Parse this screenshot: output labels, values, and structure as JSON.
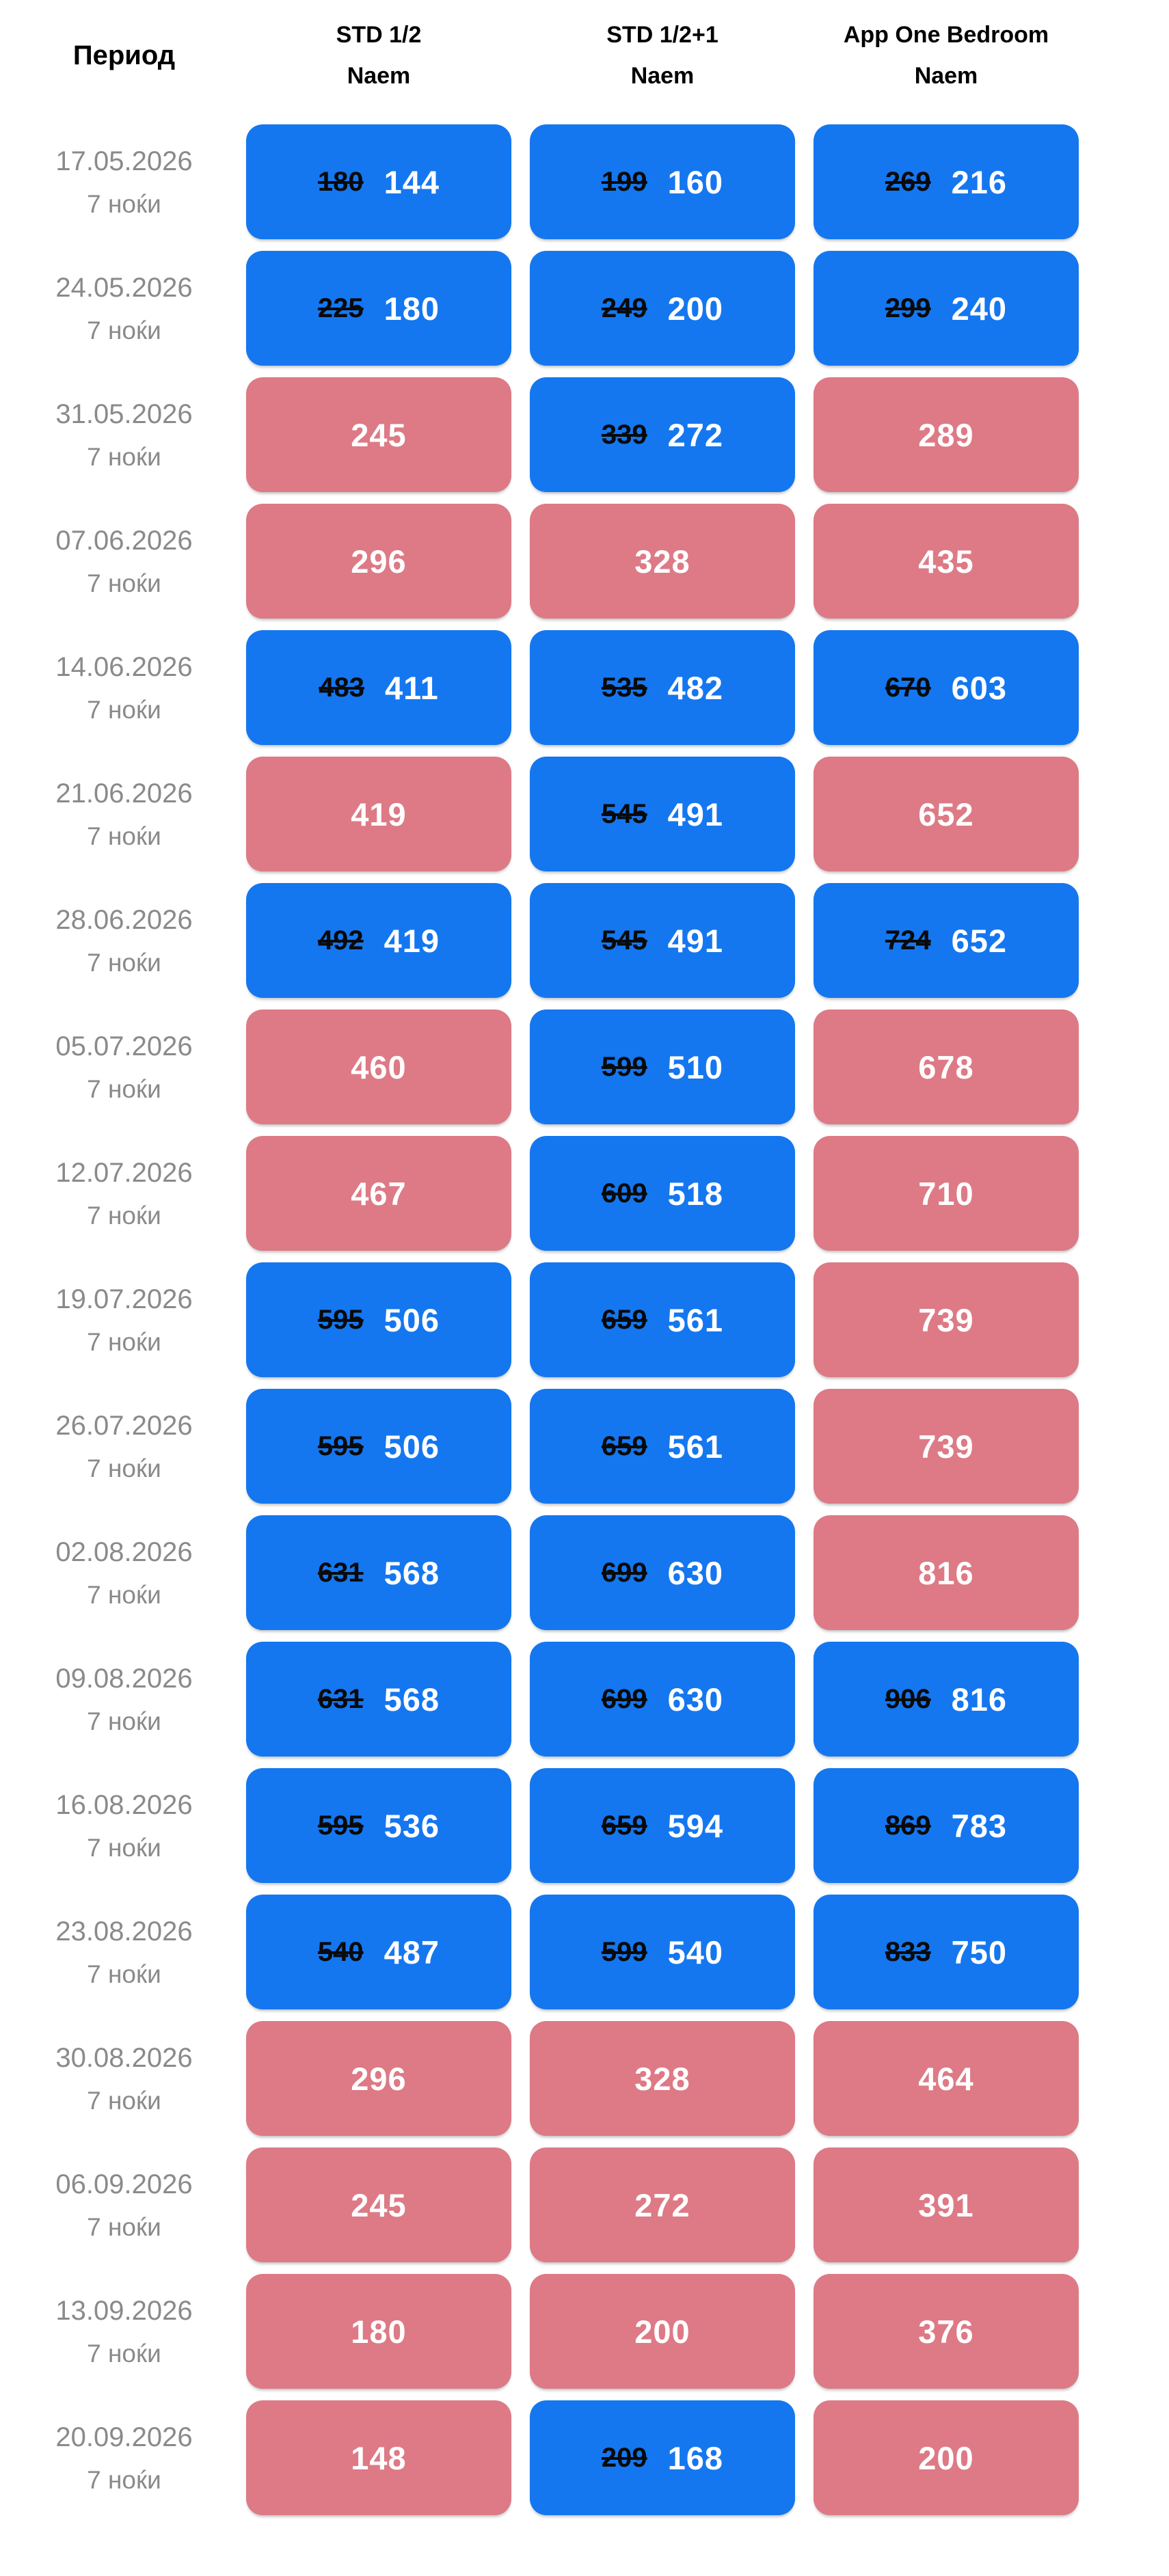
{
  "colors": {
    "deal_blue": "#1477f0",
    "standard_pink": "#dd7a86",
    "date_text": "#8a8a8a",
    "header_text": "#000000",
    "old_price_text": "#0a0a0a",
    "price_text": "#ffffff"
  },
  "header": {
    "period_label": "Период",
    "columns": [
      {
        "title": "STD 1/2",
        "subtitle": "Naem"
      },
      {
        "title": "STD 1/2+1",
        "subtitle": "Naem"
      },
      {
        "title": "App One Bedroom",
        "subtitle": "Naem"
      }
    ]
  },
  "rows": [
    {
      "period": "17.05.2026",
      "nights": "7 ноќи",
      "prices": [
        {
          "old": "180",
          "current": "144"
        },
        {
          "old": "199",
          "current": "160"
        },
        {
          "old": "269",
          "current": "216"
        }
      ]
    },
    {
      "period": "24.05.2026",
      "nights": "7 ноќи",
      "prices": [
        {
          "old": "225",
          "current": "180"
        },
        {
          "old": "249",
          "current": "200"
        },
        {
          "old": "299",
          "current": "240"
        }
      ]
    },
    {
      "period": "31.05.2026",
      "nights": "7 ноќи",
      "prices": [
        {
          "current": "245"
        },
        {
          "old": "339",
          "current": "272"
        },
        {
          "current": "289"
        }
      ]
    },
    {
      "period": "07.06.2026",
      "nights": "7 ноќи",
      "prices": [
        {
          "current": "296"
        },
        {
          "current": "328"
        },
        {
          "current": "435"
        }
      ]
    },
    {
      "period": "14.06.2026",
      "nights": "7 ноќи",
      "prices": [
        {
          "old": "483",
          "current": "411"
        },
        {
          "old": "535",
          "current": "482"
        },
        {
          "old": "670",
          "current": "603"
        }
      ]
    },
    {
      "period": "21.06.2026",
      "nights": "7 ноќи",
      "prices": [
        {
          "current": "419"
        },
        {
          "old": "545",
          "current": "491"
        },
        {
          "current": "652"
        }
      ]
    },
    {
      "period": "28.06.2026",
      "nights": "7 ноќи",
      "prices": [
        {
          "old": "492",
          "current": "419"
        },
        {
          "old": "545",
          "current": "491"
        },
        {
          "old": "724",
          "current": "652"
        }
      ]
    },
    {
      "period": "05.07.2026",
      "nights": "7 ноќи",
      "prices": [
        {
          "current": "460"
        },
        {
          "old": "599",
          "current": "510"
        },
        {
          "current": "678"
        }
      ]
    },
    {
      "period": "12.07.2026",
      "nights": "7 ноќи",
      "prices": [
        {
          "current": "467"
        },
        {
          "old": "609",
          "current": "518"
        },
        {
          "current": "710"
        }
      ]
    },
    {
      "period": "19.07.2026",
      "nights": "7 ноќи",
      "prices": [
        {
          "old": "595",
          "current": "506"
        },
        {
          "old": "659",
          "current": "561"
        },
        {
          "current": "739"
        }
      ]
    },
    {
      "period": "26.07.2026",
      "nights": "7 ноќи",
      "prices": [
        {
          "old": "595",
          "current": "506"
        },
        {
          "old": "659",
          "current": "561"
        },
        {
          "current": "739"
        }
      ]
    },
    {
      "period": "02.08.2026",
      "nights": "7 ноќи",
      "prices": [
        {
          "old": "631",
          "current": "568"
        },
        {
          "old": "699",
          "current": "630"
        },
        {
          "current": "816"
        }
      ]
    },
    {
      "period": "09.08.2026",
      "nights": "7 ноќи",
      "prices": [
        {
          "old": "631",
          "current": "568"
        },
        {
          "old": "699",
          "current": "630"
        },
        {
          "old": "906",
          "current": "816"
        }
      ]
    },
    {
      "period": "16.08.2026",
      "nights": "7 ноќи",
      "prices": [
        {
          "old": "595",
          "current": "536"
        },
        {
          "old": "659",
          "current": "594"
        },
        {
          "old": "869",
          "current": "783"
        }
      ]
    },
    {
      "period": "23.08.2026",
      "nights": "7 ноќи",
      "prices": [
        {
          "old": "540",
          "current": "487"
        },
        {
          "old": "599",
          "current": "540"
        },
        {
          "old": "833",
          "current": "750"
        }
      ]
    },
    {
      "period": "30.08.2026",
      "nights": "7 ноќи",
      "prices": [
        {
          "current": "296"
        },
        {
          "current": "328"
        },
        {
          "current": "464"
        }
      ]
    },
    {
      "period": "06.09.2026",
      "nights": "7 ноќи",
      "prices": [
        {
          "current": "245"
        },
        {
          "current": "272"
        },
        {
          "current": "391"
        }
      ]
    },
    {
      "period": "13.09.2026",
      "nights": "7 ноќи",
      "prices": [
        {
          "current": "180"
        },
        {
          "current": "200"
        },
        {
          "current": "376"
        }
      ]
    },
    {
      "period": "20.09.2026",
      "nights": "7 ноќи",
      "prices": [
        {
          "current": "148"
        },
        {
          "old": "209",
          "current": "168"
        },
        {
          "current": "200"
        }
      ]
    }
  ]
}
